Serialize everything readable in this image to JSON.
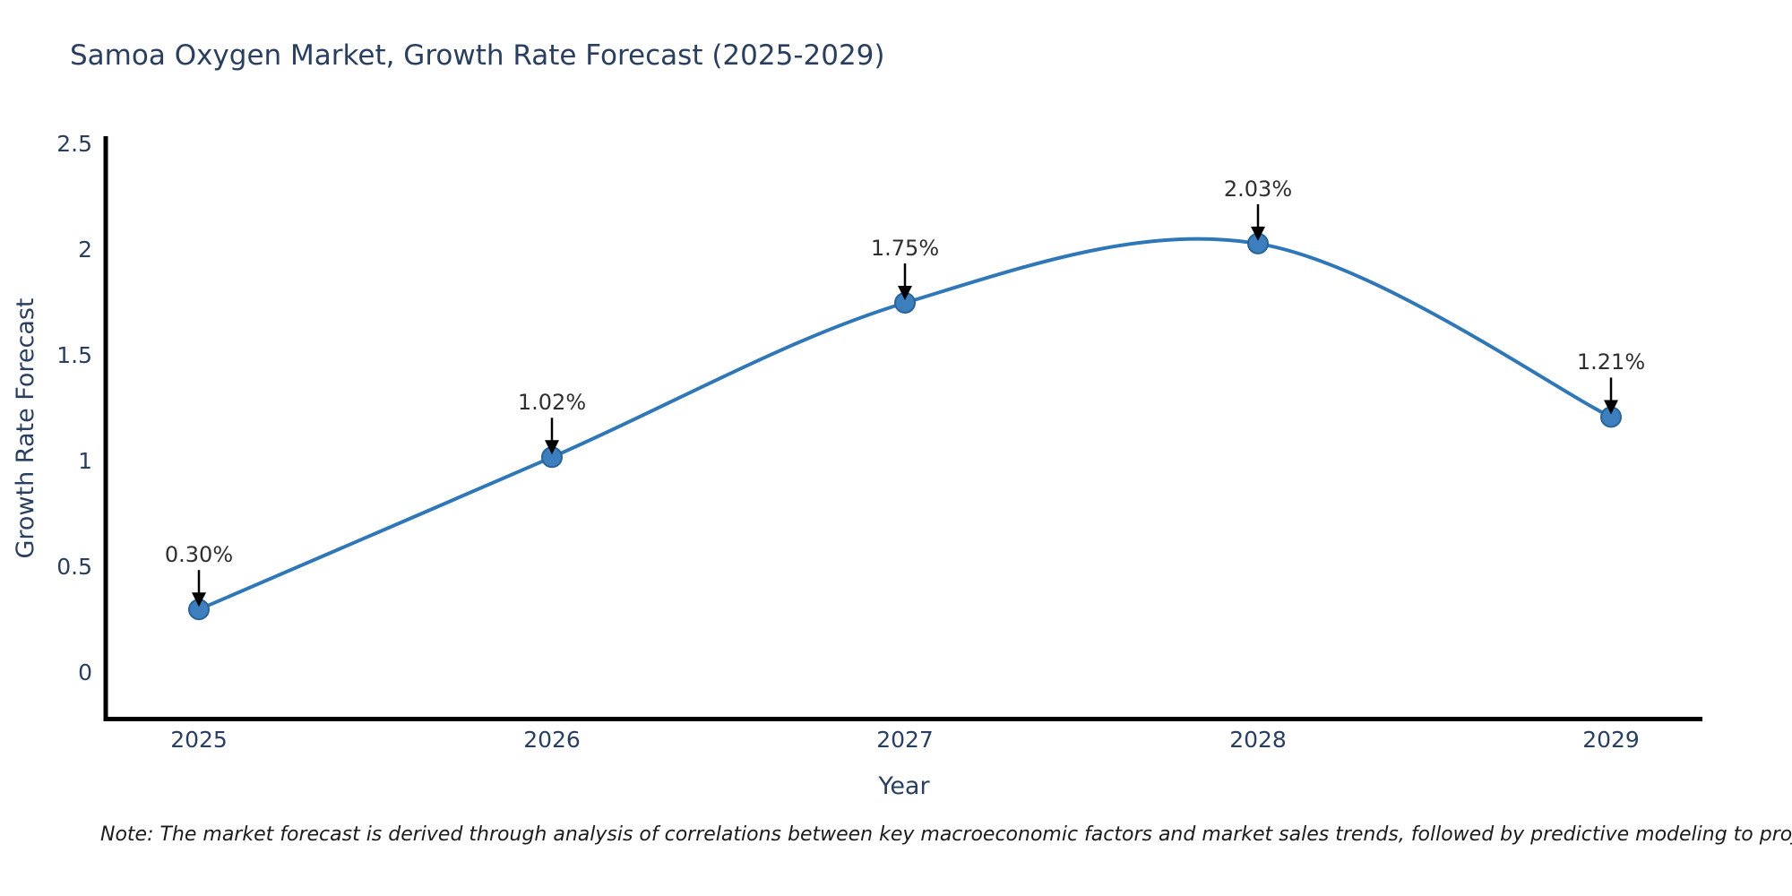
{
  "title": "Samoa Oxygen Market, Growth Rate Forecast (2025-2029)",
  "footnote": "Note: The market forecast is derived through analysis of correlations between key macroeconomic factors and market sales trends, followed by predictive modeling to project future sales",
  "chart_data": {
    "type": "line",
    "title": "Samoa Oxygen Market, Growth Rate Forecast (2025-2029)",
    "xlabel": "Year",
    "ylabel": "Growth Rate Forecast",
    "line_shape": "spline",
    "grid": false,
    "legend": "none",
    "x": [
      2025,
      2026,
      2027,
      2028,
      2029
    ],
    "series": [
      {
        "name": "Growth Rate Forecast",
        "values": [
          0.3,
          1.02,
          1.75,
          2.03,
          1.21
        ]
      }
    ],
    "point_labels": [
      "0.30%",
      "1.02%",
      "1.75%",
      "2.03%",
      "1.21%"
    ],
    "xticks": [
      "2025",
      "2026",
      "2027",
      "2028",
      "2029"
    ],
    "yticks": [
      "0",
      "0.5",
      "1",
      "1.5",
      "2",
      "2.5"
    ],
    "ytick_values": [
      0,
      0.5,
      1,
      1.5,
      2,
      2.5
    ],
    "xlim": [
      2024.74,
      2029.26
    ],
    "ylim": [
      -0.22,
      2.53
    ],
    "colors": {
      "line": "#2f77b6",
      "marker_fill": "#3d7fbe",
      "marker_edge": "#2a6396",
      "axis_line": "#000000",
      "axis_text": "#2a3f5f",
      "annotation_text": "#2f2f2f",
      "annotation_arrow": "#000000",
      "background": "#ffffff"
    }
  }
}
